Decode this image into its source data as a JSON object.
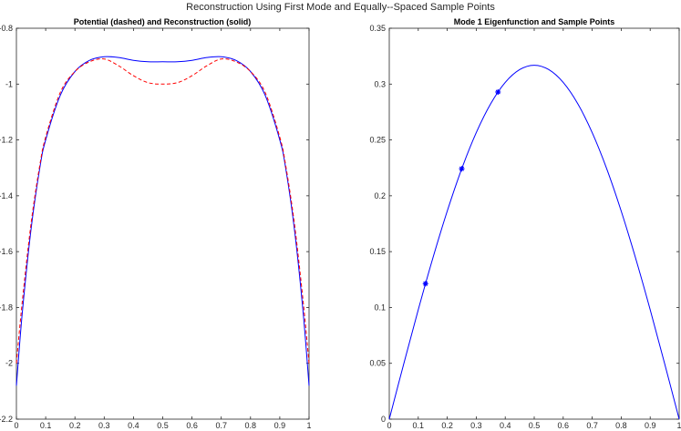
{
  "figure": {
    "suptitle": "Reconstruction Using First Mode and Equally--Spaced Sample Points"
  },
  "chart_data": [
    {
      "type": "line",
      "title": "Potential (dashed) and Reconstruction (solid)",
      "xlim": [
        0,
        1
      ],
      "ylim": [
        -2.2,
        -0.8
      ],
      "xticks": [
        0,
        0.1,
        0.2,
        0.3,
        0.4,
        0.5,
        0.6,
        0.7,
        0.8,
        0.9,
        1
      ],
      "xtick_labels": [
        "0",
        "0.1",
        "0.2",
        "0.3",
        "0.4",
        "0.5",
        "0.6",
        "0.7",
        "0.8",
        "0.9",
        "1"
      ],
      "yticks": [
        -2.2,
        -2,
        -1.8,
        -1.6,
        -1.4,
        -1.2,
        -1,
        -0.8
      ],
      "ytick_labels": [
        "-2.2",
        "-2",
        "-1.8",
        "-1.6",
        "-1.4",
        "-1.2",
        "-1",
        "-0.8"
      ],
      "grid": false,
      "series": [
        {
          "style": "solid",
          "color": "#0000ff",
          "x": [
            0,
            0.02,
            0.05,
            0.08,
            0.1,
            0.15,
            0.2,
            0.25,
            0.3,
            0.35,
            0.4,
            0.45,
            0.5,
            0.55,
            0.6,
            0.65,
            0.7,
            0.75,
            0.8,
            0.85,
            0.9,
            0.92,
            0.95,
            0.98,
            1
          ],
          "y": [
            -2.08,
            -1.82,
            -1.52,
            -1.3,
            -1.2,
            -1.04,
            -0.955,
            -0.915,
            -0.902,
            -0.905,
            -0.915,
            -0.92,
            -0.92,
            -0.92,
            -0.915,
            -0.905,
            -0.902,
            -0.915,
            -0.955,
            -1.04,
            -1.2,
            -1.3,
            -1.52,
            -1.82,
            -2.08
          ]
        },
        {
          "style": "dashed",
          "color": "#ff0000",
          "x": [
            0,
            0.02,
            0.05,
            0.08,
            0.1,
            0.15,
            0.2,
            0.25,
            0.3,
            0.35,
            0.4,
            0.45,
            0.5,
            0.55,
            0.6,
            0.65,
            0.7,
            0.75,
            0.8,
            0.85,
            0.9,
            0.92,
            0.95,
            0.98,
            1
          ],
          "y": [
            -2.0,
            -1.78,
            -1.5,
            -1.29,
            -1.19,
            -1.03,
            -0.955,
            -0.92,
            -0.91,
            -0.935,
            -0.97,
            -0.995,
            -1.0,
            -0.995,
            -0.97,
            -0.935,
            -0.91,
            -0.92,
            -0.955,
            -1.03,
            -1.19,
            -1.29,
            -1.5,
            -1.78,
            -2.0
          ]
        }
      ]
    },
    {
      "type": "line",
      "title": "Mode 1 Eigenfunction and Sample Points",
      "xlim": [
        0,
        1
      ],
      "ylim": [
        0,
        0.35
      ],
      "xticks": [
        0,
        0.1,
        0.2,
        0.3,
        0.4,
        0.5,
        0.6,
        0.7,
        0.8,
        0.9,
        1
      ],
      "xtick_labels": [
        "0",
        "0.1",
        "0.2",
        "0.3",
        "0.4",
        "0.5",
        "0.6",
        "0.7",
        "0.8",
        "0.9",
        "1"
      ],
      "yticks": [
        0,
        0.05,
        0.1,
        0.15,
        0.2,
        0.25,
        0.3,
        0.35
      ],
      "ytick_labels": [
        "0",
        "0.05",
        "0.1",
        "0.15",
        "0.2",
        "0.25",
        "0.3",
        "0.35"
      ],
      "grid": false,
      "series": [
        {
          "style": "solid",
          "color": "#0000ff",
          "x": [
            0,
            0.05,
            0.1,
            0.15,
            0.2,
            0.25,
            0.3,
            0.35,
            0.4,
            0.45,
            0.5,
            0.55,
            0.6,
            0.65,
            0.7,
            0.75,
            0.8,
            0.85,
            0.9,
            0.95,
            1
          ],
          "y": [
            0,
            0.0496,
            0.098,
            0.1439,
            0.1863,
            0.2242,
            0.2565,
            0.2825,
            0.3015,
            0.313,
            0.3169,
            0.313,
            0.3015,
            0.2825,
            0.2565,
            0.2242,
            0.1863,
            0.1439,
            0.098,
            0.0496,
            0
          ]
        },
        {
          "style": "markers",
          "marker": "asterisk",
          "color": "#0000ff",
          "x": [
            0.125,
            0.25,
            0.375
          ],
          "y": [
            0.1213,
            0.2242,
            0.2929
          ]
        }
      ]
    }
  ]
}
